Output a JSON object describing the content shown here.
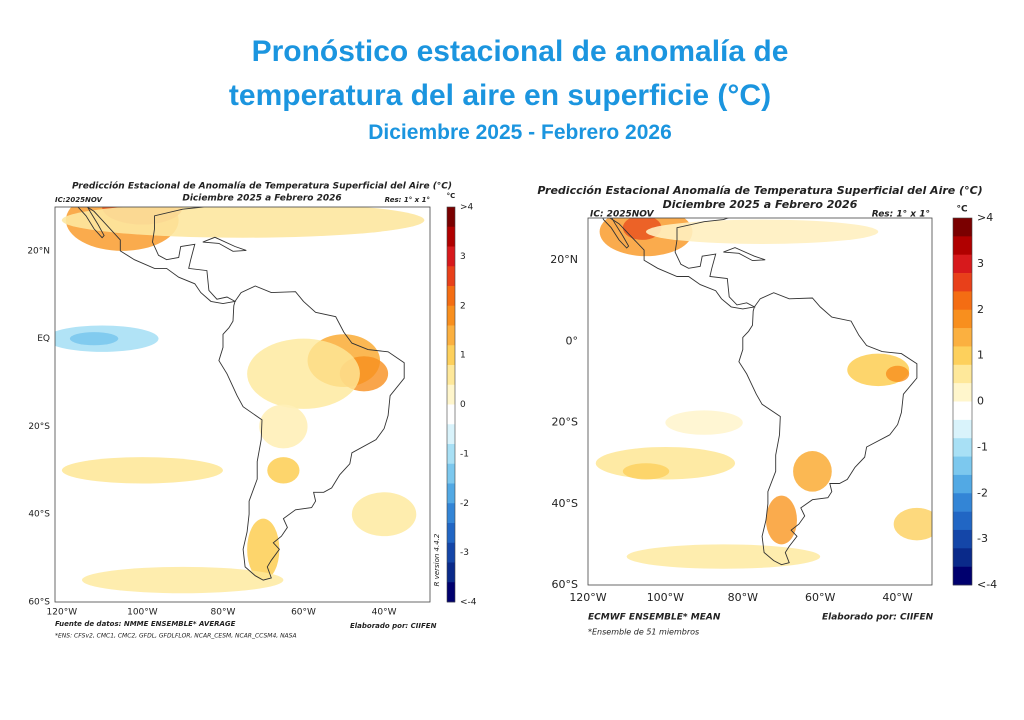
{
  "header": {
    "title_line1": "Pronóstico estacional de anomalía de",
    "title_line2": "temperatura del aire en superficie (°C)",
    "subtitle": "Diciembre 2025 - Febrero 2026"
  },
  "maps": [
    {
      "title": "Predicción Estacional de Anomalía de Temperatura Superficial del Aire (°C)",
      "subtitle": "Diciembre 2025 a Febrero 2026",
      "ic": "IC:2025NOV",
      "res": "Res: 1° x 1°",
      "unit": "°C",
      "lat_labels": [
        "20°N",
        "EQ",
        "20°S",
        "40°S",
        "60°S"
      ],
      "lon_labels": [
        "120°W",
        "100°W",
        "80°W",
        "60°W",
        "40°W"
      ],
      "colorbar_labels": [
        ">4",
        "3",
        "2",
        "1",
        "0",
        "-1",
        "-2",
        "-3",
        "<-4"
      ],
      "source": "Fuente de datos: NMME ENSEMBLE* AVERAGE",
      "author": "Elaborado por: CIIFEN",
      "note": "*ENS: CFSv2, CMC1, CMC2, GFDL, GFDLFLOR, NCAR_CESM, NCAR_CCSM4, NASA",
      "version": "R version 4.4.2"
    },
    {
      "title": "Predicción Estacional Anomalía de Temperatura Superficial del Aire (°C)",
      "subtitle": "Diciembre 2025 a Febrero 2026",
      "ic": "IC: 2025NOV",
      "res": "Res: 1° x 1°",
      "unit": "°C",
      "lat_labels": [
        "20°N",
        "0°",
        "20°S",
        "40°S",
        "60°S"
      ],
      "lon_labels": [
        "120°W",
        "100°W",
        "80°W",
        "60°W",
        "40°W"
      ],
      "colorbar_labels": [
        ">4",
        "3",
        "2",
        "1",
        "0",
        "-1",
        "-2",
        "-3",
        "<-4"
      ],
      "source": "ECMWF ENSEMBLE* MEAN",
      "author": "Elaborado por: CIIFEN",
      "note": "*Ensemble de 51 miembros"
    }
  ]
}
